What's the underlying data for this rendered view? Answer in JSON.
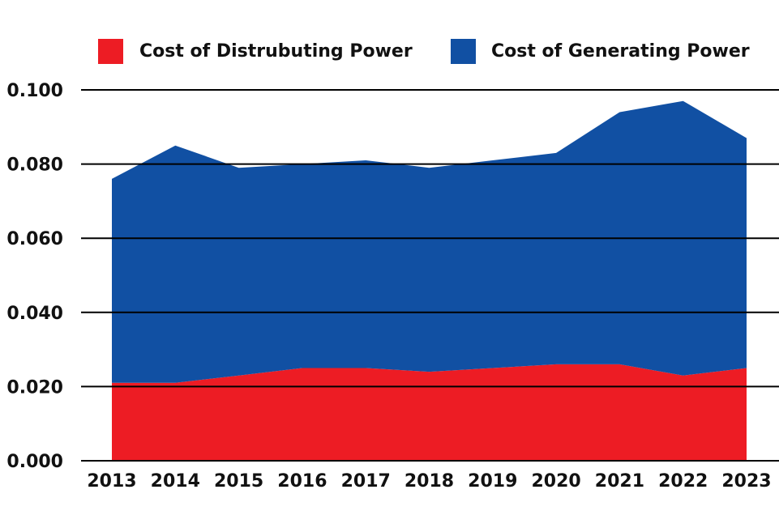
{
  "chart_data": {
    "type": "area",
    "stacked": true,
    "legend_position": "top",
    "grid": true,
    "x": [
      "2013",
      "2014",
      "2015",
      "2016",
      "2017",
      "2018",
      "2019",
      "2020",
      "2021",
      "2022",
      "2023"
    ],
    "ylim": [
      0,
      0.1
    ],
    "yticks": [
      "0.000",
      "0.020",
      "0.040",
      "0.060",
      "0.080",
      "0.100"
    ],
    "series": [
      {
        "name": "Cost of Distrubuting Power",
        "color": "#ed1c24",
        "values": [
          0.021,
          0.021,
          0.023,
          0.025,
          0.025,
          0.024,
          0.025,
          0.026,
          0.026,
          0.023,
          0.025
        ]
      },
      {
        "name": "Cost of Generating Power",
        "color": "#1150a3",
        "values": [
          0.055,
          0.064,
          0.056,
          0.055,
          0.056,
          0.055,
          0.056,
          0.057,
          0.068,
          0.074,
          0.062
        ]
      }
    ]
  }
}
